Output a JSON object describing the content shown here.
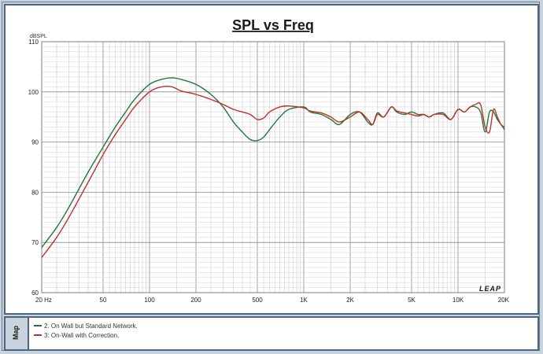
{
  "chart_data": {
    "type": "line",
    "title": "SPL vs Freq",
    "ylabel": "dBSPL",
    "xscale": "log",
    "xlim": [
      20,
      20000
    ],
    "ylim": [
      60,
      110
    ],
    "yticks": [
      60,
      70,
      80,
      90,
      100,
      110
    ],
    "xticks": [
      {
        "value": 20,
        "label": "20 Hz"
      },
      {
        "value": 50,
        "label": "50"
      },
      {
        "value": 100,
        "label": "100"
      },
      {
        "value": 200,
        "label": "200"
      },
      {
        "value": 500,
        "label": "500"
      },
      {
        "value": 1000,
        "label": "1K"
      },
      {
        "value": 2000,
        "label": "2K"
      },
      {
        "value": 5000,
        "label": "5K"
      },
      {
        "value": 10000,
        "label": "10K"
      },
      {
        "value": 20000,
        "label": "20K"
      }
    ],
    "grid": true,
    "watermark": "LEAP",
    "series": [
      {
        "name": "2. On Wall but Standard Network.",
        "color": "#1f7a3a",
        "x": [
          20,
          25,
          30,
          40,
          50,
          60,
          70,
          80,
          100,
          120,
          140,
          160,
          200,
          250,
          300,
          350,
          400,
          450,
          500,
          550,
          600,
          700,
          800,
          1000,
          1100,
          1300,
          1500,
          1700,
          2000,
          2300,
          2600,
          2800,
          3000,
          3300,
          3700,
          4000,
          4500,
          5000,
          5500,
          6000,
          6500,
          7000,
          8000,
          9000,
          10000,
          11000,
          12000,
          13000,
          14000,
          15000,
          16000,
          17000,
          18000,
          19000,
          20000
        ],
        "y": [
          69,
          73,
          77,
          84,
          89,
          93,
          96,
          98.5,
          101.5,
          102.5,
          102.8,
          102.5,
          101.5,
          99.5,
          97,
          94,
          92,
          90.5,
          90.3,
          91,
          92.5,
          95,
          96.5,
          97,
          96,
          95.5,
          94.5,
          93.5,
          95.5,
          96,
          94,
          93.5,
          95.8,
          95,
          97,
          96,
          95.5,
          96,
          95.5,
          95.5,
          95,
          95.5,
          95.8,
          94.5,
          96.5,
          96,
          97,
          97,
          96,
          92,
          96,
          96,
          94.5,
          93.5,
          92.5
        ]
      },
      {
        "name": "3: On-Wall with Correction.",
        "color": "#c0312b",
        "x": [
          20,
          25,
          30,
          40,
          50,
          60,
          70,
          80,
          100,
          120,
          140,
          160,
          200,
          250,
          300,
          350,
          400,
          450,
          500,
          550,
          600,
          700,
          800,
          1000,
          1100,
          1300,
          1500,
          1700,
          2000,
          2300,
          2600,
          2800,
          3000,
          3300,
          3700,
          4000,
          4500,
          5000,
          5500,
          6000,
          6500,
          7000,
          8000,
          9000,
          10000,
          11000,
          12000,
          13000,
          14000,
          15000,
          16000,
          17000,
          18000,
          19000,
          20000
        ],
        "y": [
          67,
          71,
          75,
          82,
          87.5,
          91.5,
          94.5,
          97,
          100,
          101,
          101,
          100.2,
          99.5,
          98.5,
          97.5,
          96.5,
          96,
          95.5,
          94.5,
          94.8,
          96,
          97,
          97.2,
          96.8,
          96.2,
          95.8,
          95,
          94,
          95,
          96,
          94.5,
          93.5,
          95.5,
          95,
          97,
          96.2,
          95.8,
          95.5,
          95.2,
          95.5,
          95,
          95.5,
          95.5,
          94.5,
          96.5,
          96,
          97,
          97.5,
          97.5,
          93,
          92,
          96.5,
          95,
          93.5,
          93
        ]
      }
    ]
  },
  "map_tab_label": "Map"
}
